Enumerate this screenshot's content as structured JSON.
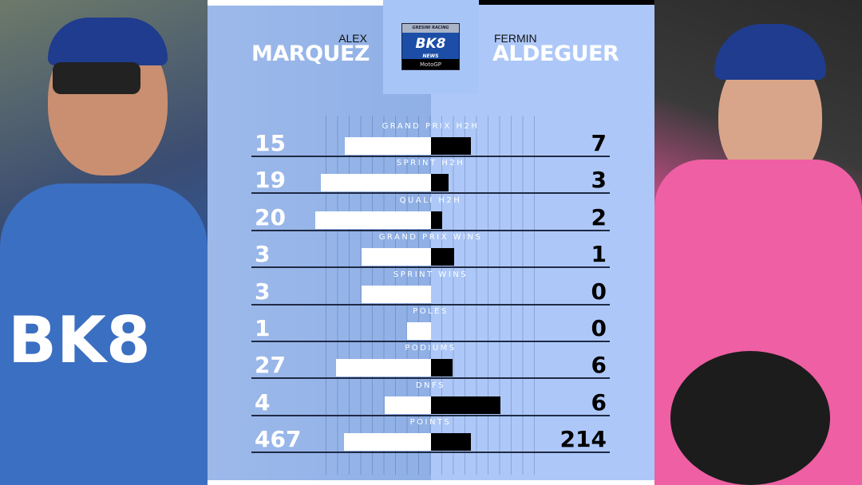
{
  "header": {
    "left_rider": {
      "first": "ALEX",
      "last": "MARQUEZ"
    },
    "right_rider": {
      "first": "FERMIN",
      "last": "ALDEGUER"
    },
    "logo": {
      "top": "GRESINI RACING",
      "main": "BK8",
      "sub": "NEWS",
      "bottom": "MotoGP"
    }
  },
  "colors": {
    "left_panel": "#8fb0e6",
    "right_panel": "#adc8f8",
    "left_bar": "#ffffff",
    "right_bar": "#000000"
  },
  "chart_data": {
    "type": "bar",
    "orientation": "diverging-horizontal",
    "series": [
      {
        "name": "MARQUEZ",
        "values": [
          15,
          19,
          20,
          3,
          3,
          1,
          27,
          4,
          467
        ]
      },
      {
        "name": "ALDEGUER",
        "values": [
          7,
          3,
          2,
          1,
          0,
          0,
          6,
          6,
          214
        ]
      }
    ],
    "categories": [
      "GRAND PRIX H2H",
      "SPRINT H2H",
      "QUALI H2H",
      "GRAND PRIX WINS",
      "SPRINT WINS",
      "POLES",
      "PODIUMS",
      "DNFS",
      "POINTS"
    ],
    "grid": true
  }
}
